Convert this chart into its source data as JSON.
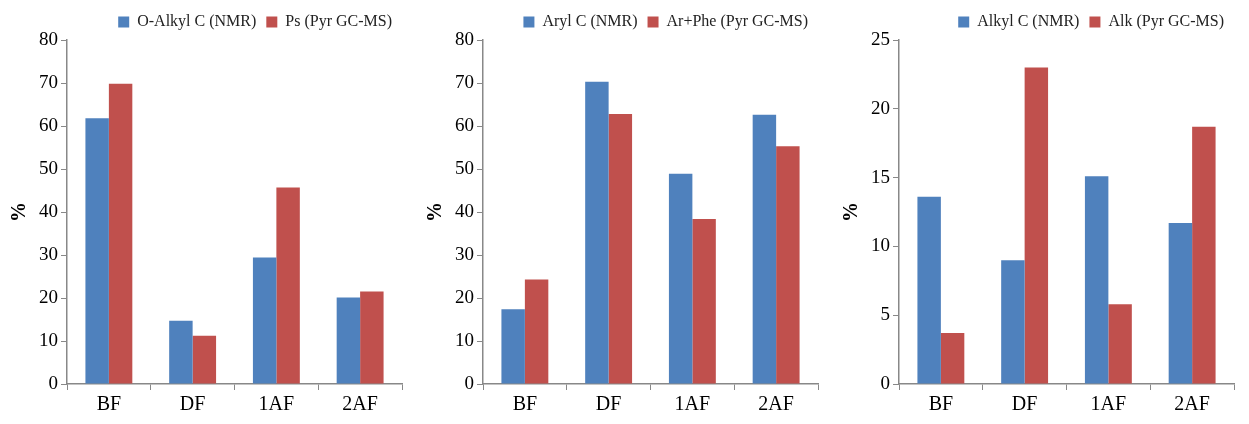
{
  "chart_data": [
    {
      "type": "bar",
      "categories": [
        "BF",
        "DF",
        "1AF",
        "2AF"
      ],
      "ylabel": "%",
      "ylim": [
        0,
        80
      ],
      "yticks": [
        0,
        10,
        20,
        30,
        40,
        50,
        60,
        70,
        80
      ],
      "grid": false,
      "legend": "top right",
      "series": [
        {
          "name": "O-Alkyl C (NMR)",
          "color": "#4f81bd",
          "values": [
            61.8,
            14.7,
            29.4,
            20.1
          ]
        },
        {
          "name": "Ps (Pyr GC-MS)",
          "color": "#c0504d",
          "values": [
            69.8,
            11.2,
            45.7,
            21.5
          ]
        }
      ]
    },
    {
      "type": "bar",
      "categories": [
        "BF",
        "DF",
        "1AF",
        "2AF"
      ],
      "ylabel": "%",
      "ylim": [
        0,
        80
      ],
      "yticks": [
        0,
        10,
        20,
        30,
        40,
        50,
        60,
        70,
        80
      ],
      "grid": false,
      "legend": "top right",
      "series": [
        {
          "name": "Aryl C (NMR)",
          "color": "#4f81bd",
          "values": [
            17.4,
            70.3,
            48.9,
            62.6
          ]
        },
        {
          "name": "Ar+Phe (Pyr GC-MS)",
          "color": "#c0504d",
          "values": [
            24.3,
            62.8,
            38.4,
            55.3
          ]
        }
      ]
    },
    {
      "type": "bar",
      "categories": [
        "BF",
        "DF",
        "1AF",
        "2AF"
      ],
      "ylabel": "%",
      "ylim": [
        0,
        25
      ],
      "yticks": [
        0,
        5,
        10,
        15,
        20,
        25
      ],
      "grid": false,
      "legend": "top right",
      "series": [
        {
          "name": "Alkyl C (NMR)",
          "color": "#4f81bd",
          "values": [
            13.6,
            9.0,
            15.1,
            11.7
          ]
        },
        {
          "name": "Alk (Pyr GC-MS)",
          "color": "#c0504d",
          "values": [
            3.7,
            23.0,
            5.8,
            18.7
          ]
        }
      ]
    }
  ]
}
